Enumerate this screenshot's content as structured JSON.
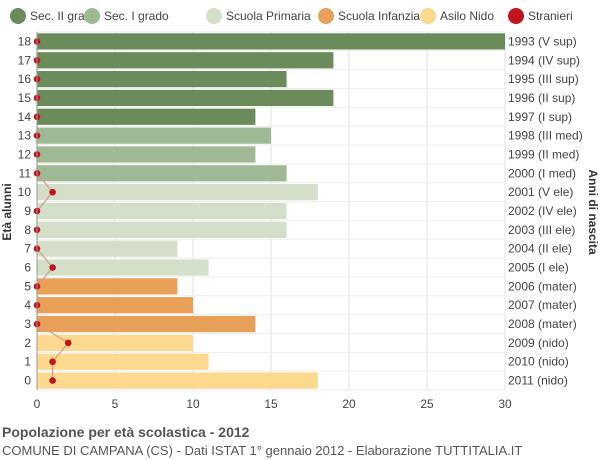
{
  "legend": [
    {
      "label": "Sec. II grado",
      "color": "#6b8b5a"
    },
    {
      "label": "Sec. I grado",
      "color": "#a0b995"
    },
    {
      "label": "Scuola Primaria",
      "color": "#d3dfc9"
    },
    {
      "label": "Scuola Infanzia",
      "color": "#e89f57"
    },
    {
      "label": "Asilo Nido",
      "color": "#fcd98e"
    },
    {
      "label": "Stranieri",
      "color": "#c0161b"
    }
  ],
  "title": "Popolazione per età scolastica - 2012",
  "subtitle": "COMUNE DI CAMPANA (CS) - Dati ISTAT 1° gennaio 2012 - Elaborazione TUTTITALIA.IT",
  "chart_data": {
    "type": "bar",
    "orientation": "horizontal",
    "ylabel_left": "Età alunni",
    "ylabel_right": "Anni di nascita",
    "xlim": [
      0,
      30
    ],
    "xticks": [
      0,
      5,
      10,
      15,
      20,
      25,
      30
    ],
    "grid": true,
    "legend_position": "top",
    "categories": [
      "18",
      "17",
      "16",
      "15",
      "14",
      "13",
      "12",
      "11",
      "10",
      "9",
      "8",
      "7",
      "6",
      "5",
      "4",
      "3",
      "2",
      "1",
      "0"
    ],
    "birth_years": [
      "1993 (V sup)",
      "1994 (IV sup)",
      "1995 (III sup)",
      "1996 (II sup)",
      "1997 (I sup)",
      "1998 (III med)",
      "1999 (II med)",
      "2000 (I med)",
      "2001 (V ele)",
      "2002 (IV ele)",
      "2003 (III ele)",
      "2004 (II ele)",
      "2005 (I ele)",
      "2006 (mater)",
      "2007 (mater)",
      "2008 (mater)",
      "2009 (nido)",
      "2010 (nido)",
      "2011 (nido)"
    ],
    "values": [
      30,
      19,
      16,
      19,
      14,
      15,
      14,
      16,
      18,
      16,
      16,
      9,
      11,
      9,
      10,
      14,
      10,
      11,
      18
    ],
    "groups": [
      "Sec. II grado",
      "Sec. II grado",
      "Sec. II grado",
      "Sec. II grado",
      "Sec. II grado",
      "Sec. I grado",
      "Sec. I grado",
      "Sec. I grado",
      "Scuola Primaria",
      "Scuola Primaria",
      "Scuola Primaria",
      "Scuola Primaria",
      "Scuola Primaria",
      "Scuola Infanzia",
      "Scuola Infanzia",
      "Scuola Infanzia",
      "Asilo Nido",
      "Asilo Nido",
      "Asilo Nido"
    ],
    "stranieri": [
      0,
      0,
      0,
      0,
      0,
      0,
      0,
      0,
      1,
      0,
      0,
      0,
      1,
      0,
      0,
      0,
      2,
      1,
      1
    ]
  }
}
